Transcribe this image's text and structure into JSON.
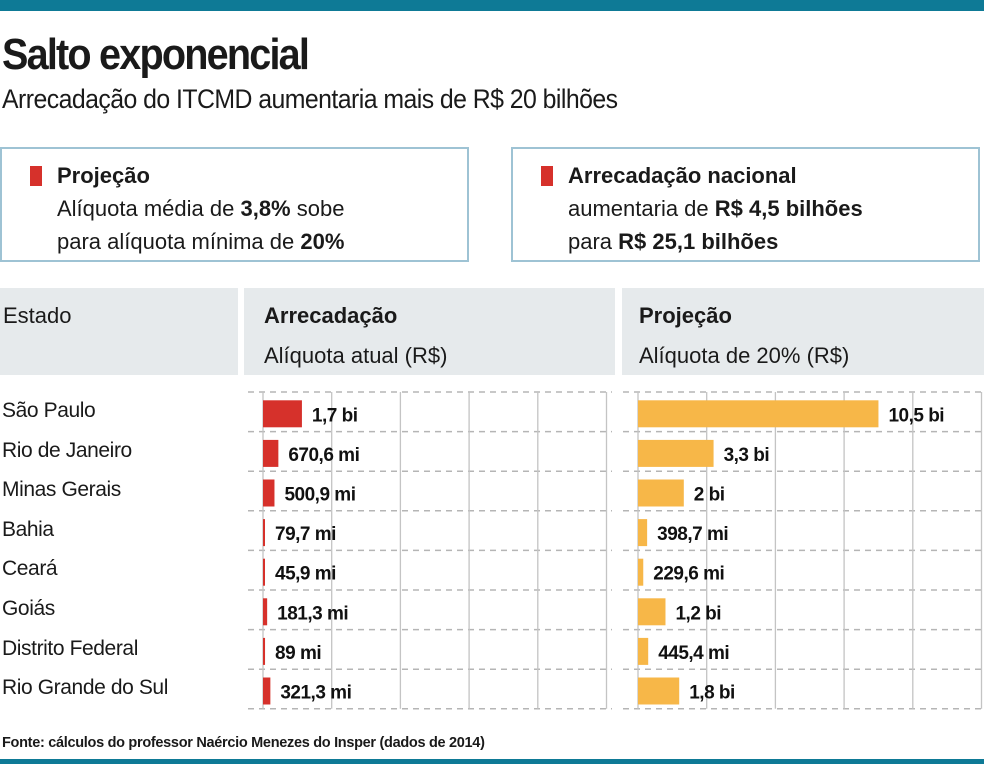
{
  "title": "Salto exponencial",
  "subtitle": "Arrecadação do ITCMD aumentaria mais de R$ 20 bilhões",
  "box_left": {
    "heading": "Projeção",
    "line1_pre": "Alíquota média de ",
    "line1_bold": "3,8%",
    "line1_post": " sobe",
    "line2_pre": "para alíquota mínima de ",
    "line2_bold": "20%"
  },
  "box_right": {
    "heading": "Arrecadação nacional",
    "line1_pre": "aumentaria de ",
    "line1_bold": "R$ 4,5 bilhões",
    "line2_pre": "para ",
    "line2_bold": "R$ 25,1 bilhões"
  },
  "colors": {
    "accent": "#0e7a96",
    "current": "#d6312b",
    "projection": "#f7b748"
  },
  "chart_data": {
    "type": "bar",
    "categories": [
      "São Paulo",
      "Rio de Janeiro",
      "Minas Gerais",
      "Bahia",
      "Ceará",
      "Goiás",
      "Distrito Federal",
      "Rio Grande do Sul"
    ],
    "column_header": "Estado",
    "series": [
      {
        "name": "Arrecadação",
        "subtitle": "Alíquota atual (R$)",
        "unit": "bilhões R$",
        "values": [
          1.7,
          0.6706,
          0.5009,
          0.0797,
          0.0459,
          0.1813,
          0.089,
          0.3213
        ],
        "labels": [
          "1,7 bi",
          "670,6 mi",
          "500,9 mi",
          "79,7 mi",
          "45,9 mi",
          "181,3 mi",
          "89 mi",
          "321,3 mi"
        ]
      },
      {
        "name": "Projeção",
        "subtitle": "Alíquota de 20% (R$)",
        "unit": "bilhões R$",
        "values": [
          10.5,
          3.3,
          2,
          0.3987,
          0.2296,
          1.2,
          0.4454,
          1.8
        ],
        "labels": [
          "10,5 bi",
          "3,3 bi",
          "2 bi",
          "398,7 mi",
          "229,6 mi",
          "1,2 bi",
          "445,4 mi",
          "1,8 bi"
        ]
      }
    ],
    "grid_step": 3,
    "xlim": [
      0,
      15
    ]
  },
  "source": "Fonte: cálculos do professor Naércio Menezes do Insper (dados de 2014)"
}
